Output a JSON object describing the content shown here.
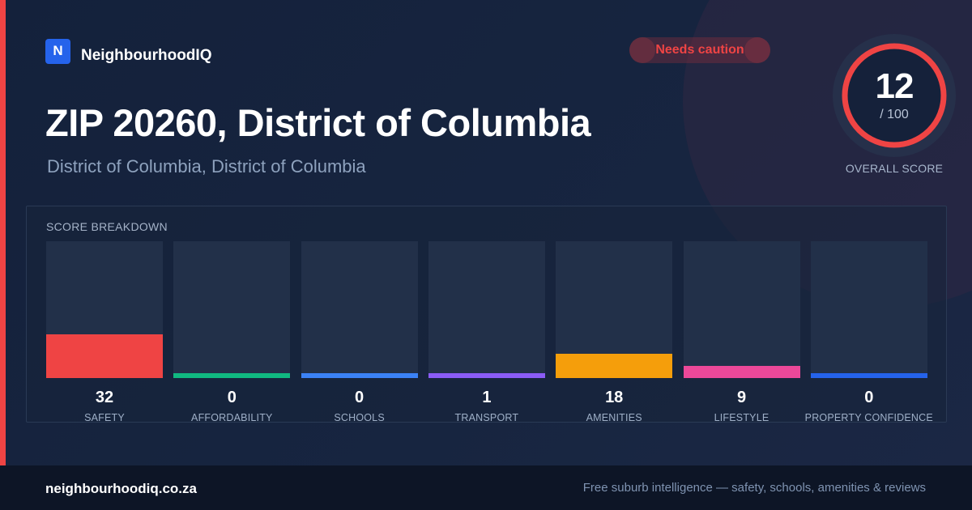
{
  "brand": {
    "logo_letter": "N",
    "name": "NeighbourhoodIQ",
    "logo_color": "#2563eb"
  },
  "status": {
    "label": "Needs caution",
    "color": "#ef4444"
  },
  "header": {
    "title": "ZIP 20260, District of Columbia",
    "subtitle": "District of Columbia, District of Columbia"
  },
  "overall": {
    "score": "12",
    "max_label": "/ 100",
    "caption": "OVERALL SCORE",
    "value": 12,
    "max": 100,
    "ring_color": "#ef4444"
  },
  "breakdown": {
    "title": "SCORE BREAKDOWN",
    "max": 100,
    "items": [
      {
        "label": "SAFETY",
        "value": 32,
        "display": "32",
        "color": "#ef4444"
      },
      {
        "label": "AFFORDABILITY",
        "value": 0,
        "display": "0",
        "color": "#10b981"
      },
      {
        "label": "SCHOOLS",
        "value": 0,
        "display": "0",
        "color": "#3b82f6"
      },
      {
        "label": "TRANSPORT",
        "value": 1,
        "display": "1",
        "color": "#8b5cf6"
      },
      {
        "label": "AMENITIES",
        "value": 18,
        "display": "18",
        "color": "#f59e0b"
      },
      {
        "label": "LIFESTYLE",
        "value": 9,
        "display": "9",
        "color": "#ec4899"
      },
      {
        "label": "PROPERTY CONFIDENCE",
        "value": 0,
        "display": "0",
        "color": "#2563eb"
      }
    ]
  },
  "footer": {
    "domain": "neighbourhoodiq.co.za",
    "tagline": "Free suburb intelligence — safety, schools, amenities & reviews"
  },
  "accent_color": "#ef4444"
}
